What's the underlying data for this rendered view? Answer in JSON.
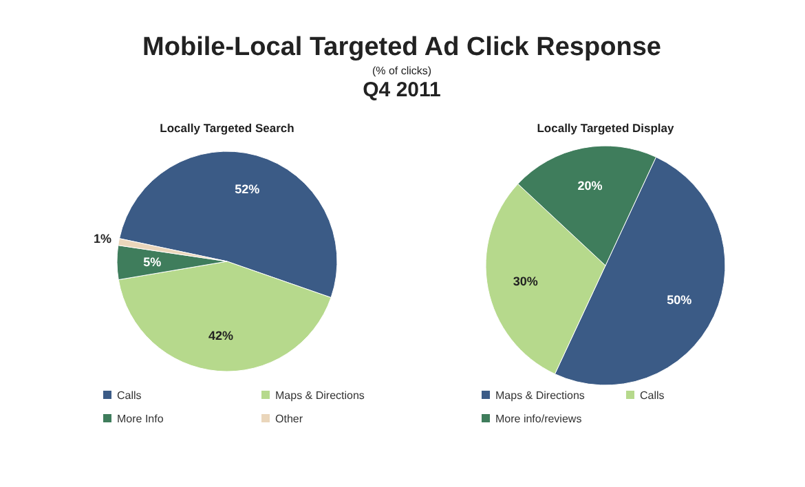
{
  "chart_data": [
    {
      "type": "pie",
      "title": "Locally Targeted Search",
      "annotations": [
        "Mobile-Local Targeted Ad Click Response",
        "(% of clicks)",
        "Q4 2011"
      ],
      "categories": [
        "Calls",
        "Maps & Directions",
        "More Info",
        "Other"
      ],
      "values": [
        52,
        42,
        5,
        1
      ],
      "value_labels": [
        "52%",
        "42%",
        "5%",
        "1%"
      ],
      "colors": [
        "#3b5b86",
        "#b6d98c",
        "#3f7d5c",
        "#ead6bb"
      ],
      "legend": "bottom"
    },
    {
      "type": "pie",
      "title": "Locally Targeted Display",
      "categories": [
        "Maps & Directions",
        "Calls",
        "More info/reviews"
      ],
      "values": [
        50,
        30,
        20
      ],
      "value_labels": [
        "50%",
        "30%",
        "20%"
      ],
      "colors": [
        "#3b5b86",
        "#b6d98c",
        "#3f7d5c"
      ],
      "legend": "bottom"
    }
  ]
}
